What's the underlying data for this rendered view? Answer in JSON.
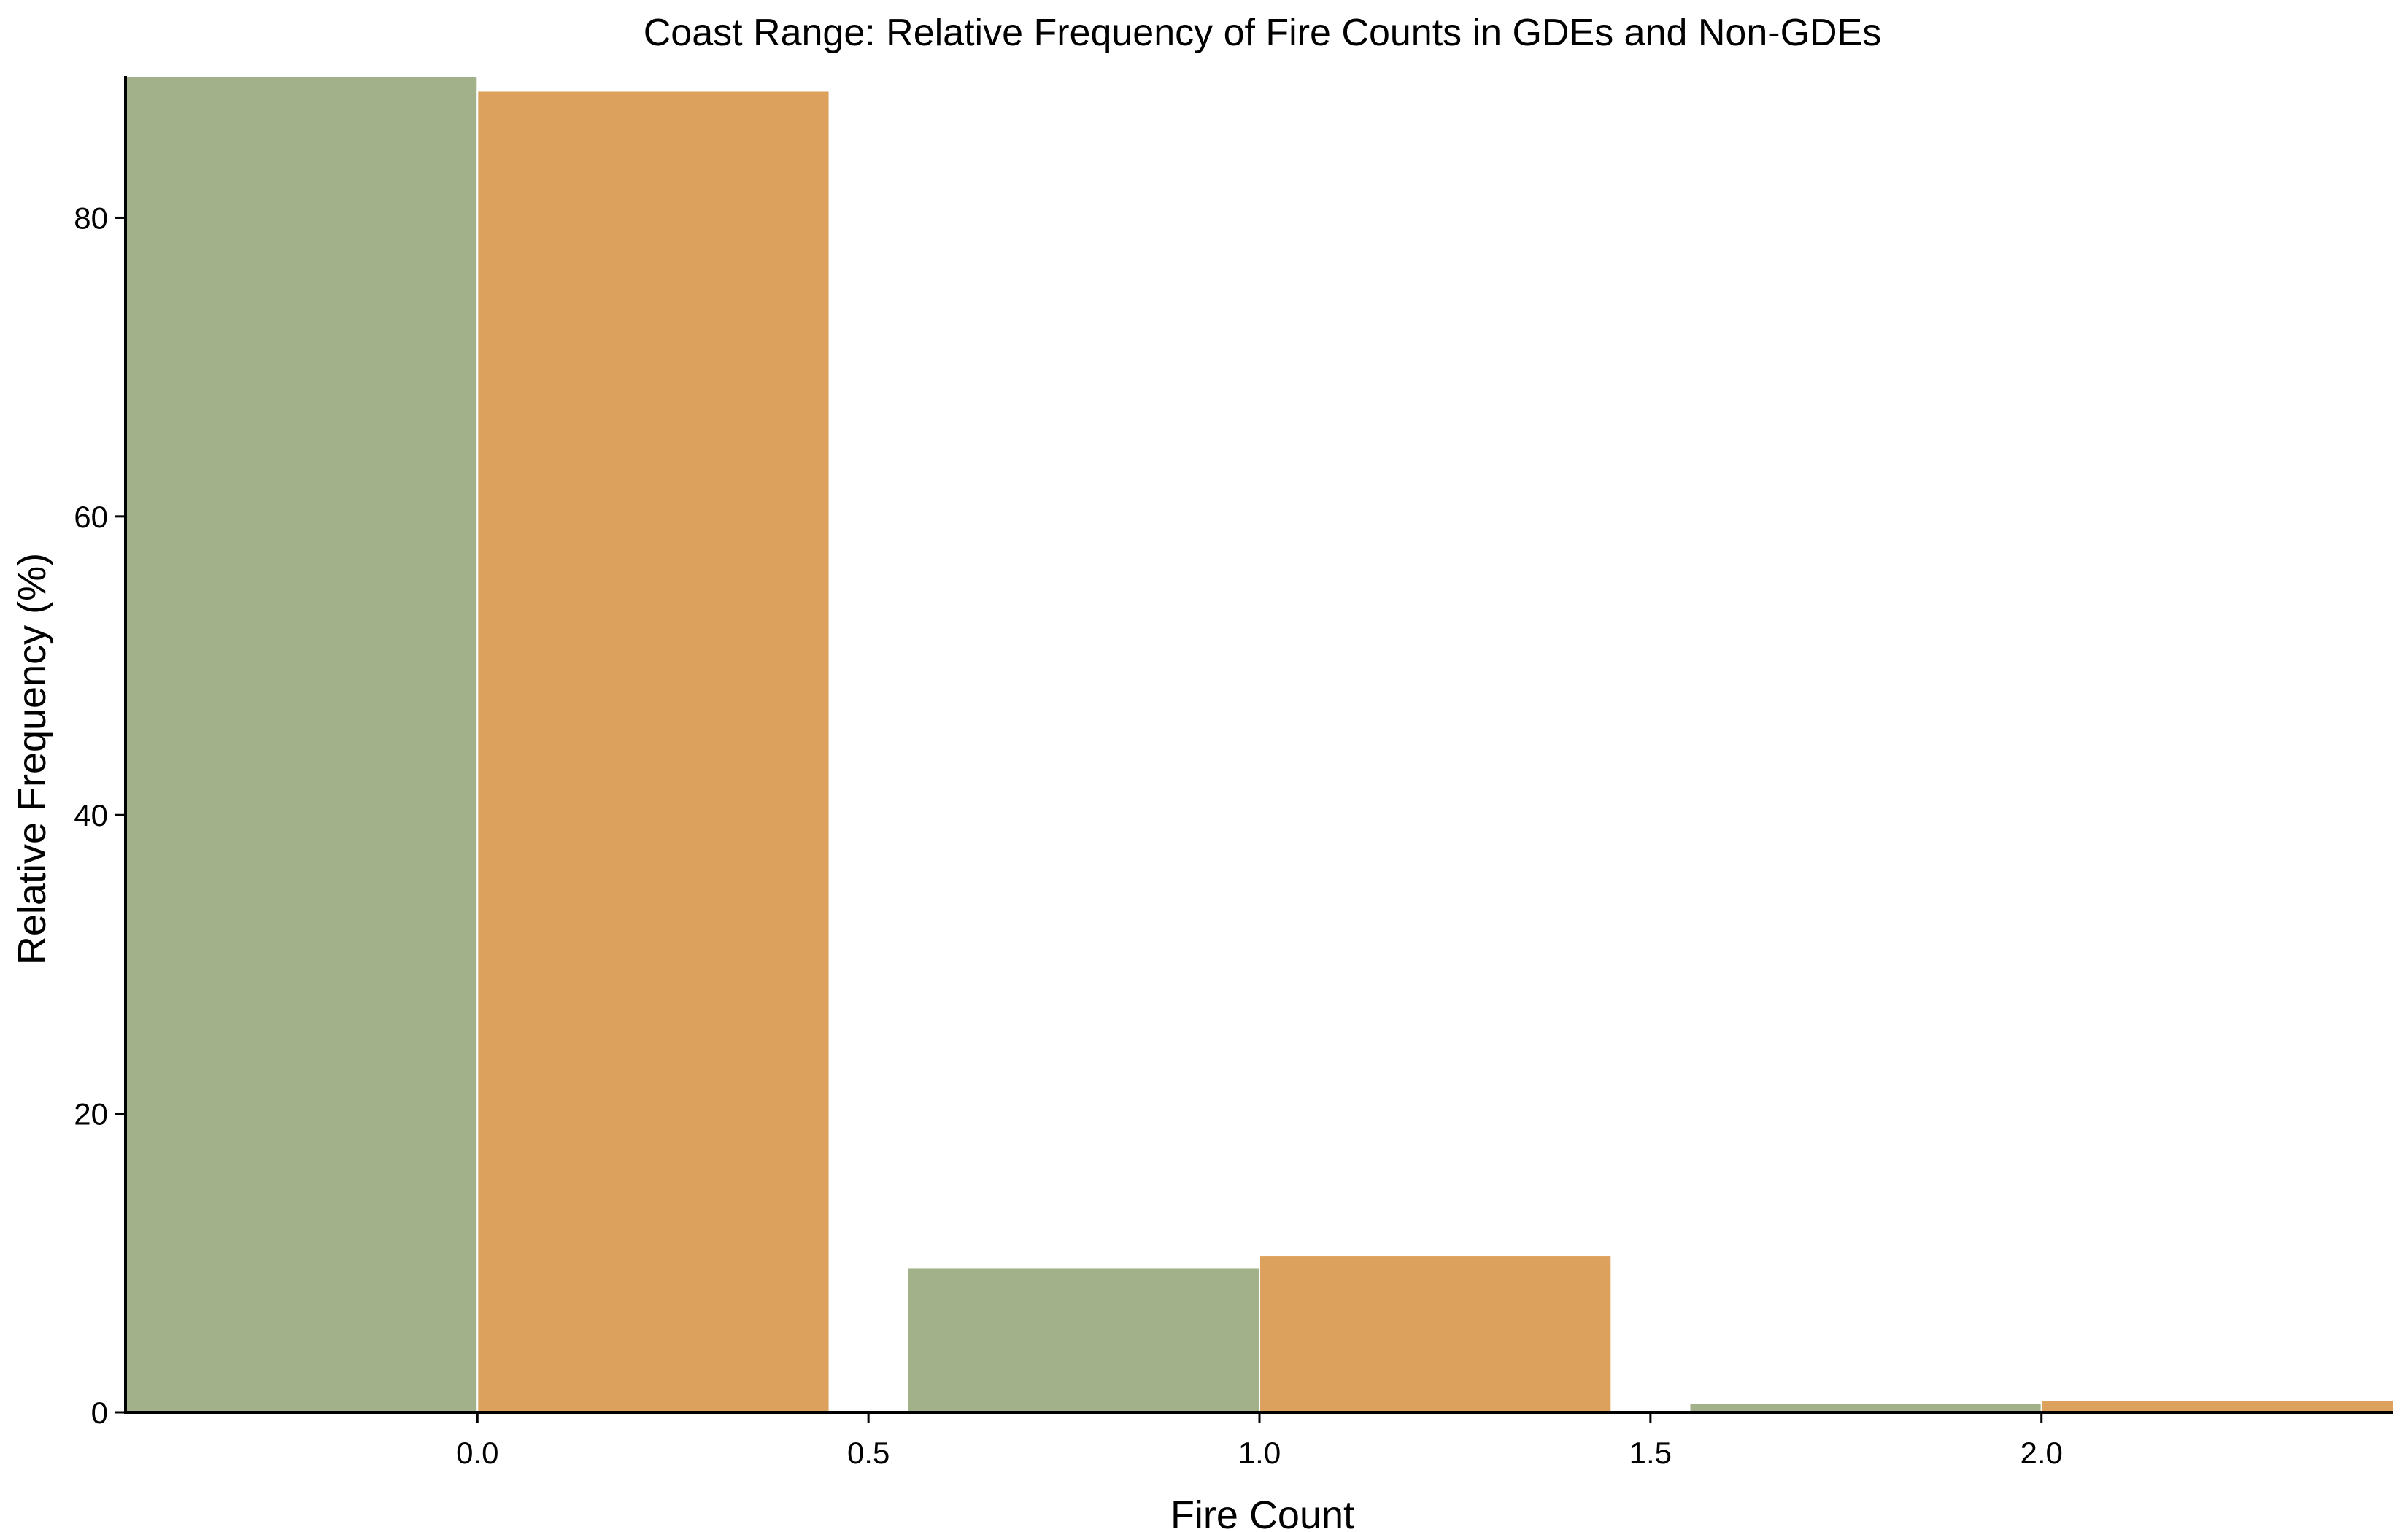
{
  "chart_data": {
    "type": "bar",
    "title": "Coast Range: Relative Frequency of Fire Counts in GDEs and Non-GDEs",
    "xlabel": "Fire Count",
    "ylabel": "Relative Frequency (%)",
    "x_ticks": [
      "0.0",
      "0.5",
      "1.0",
      "1.5",
      "2.0"
    ],
    "y_ticks": [
      "0",
      "20",
      "40",
      "60",
      "80"
    ],
    "xlim": [
      -0.45,
      2.45
    ],
    "ylim": [
      0,
      89.5
    ],
    "grid": false,
    "bin_width": 0.9,
    "series": [
      {
        "color": "#a2b189",
        "bins": [
          {
            "x0": -0.45,
            "x1": 0.0,
            "value": 89.5
          },
          {
            "x0": 0.55,
            "x1": 1.0,
            "value": 9.7
          },
          {
            "x0": 1.55,
            "x1": 2.0,
            "value": 0.6
          }
        ]
      },
      {
        "color": "#dca25d",
        "bins": [
          {
            "x0": 0.0,
            "x1": 0.45,
            "value": 88.5
          },
          {
            "x0": 1.0,
            "x1": 1.45,
            "value": 10.5
          },
          {
            "x0": 2.0,
            "x1": 2.45,
            "value": 0.8
          }
        ]
      }
    ]
  }
}
